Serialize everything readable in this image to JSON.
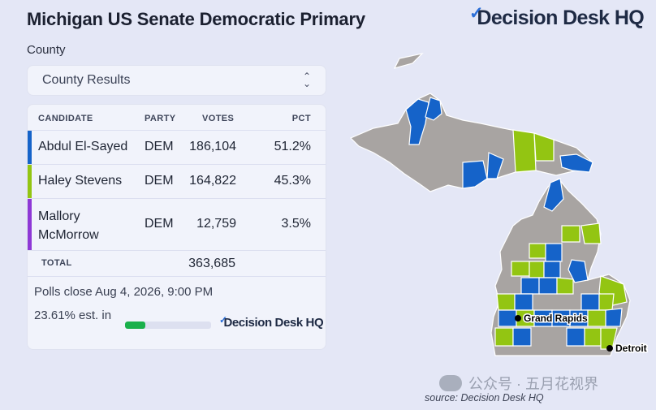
{
  "header": {
    "title": "Michigan US Senate Democratic Primary",
    "brand": "Decision Desk HQ"
  },
  "filter": {
    "label": "County",
    "selected": "County Results"
  },
  "table": {
    "columns": [
      "CANDIDATE",
      "PARTY",
      "VOTES",
      "PCT"
    ],
    "rows": [
      {
        "candidate": "Abdul El-Sayed",
        "party": "DEM",
        "votes": "186,104",
        "pct": "51.2%",
        "color": "#1563c9"
      },
      {
        "candidate": "Haley Stevens",
        "party": "DEM",
        "votes": "164,822",
        "pct": "45.3%",
        "color": "#93c512"
      },
      {
        "candidate": "Mallory McMorrow",
        "party": "DEM",
        "votes": "12,759",
        "pct": "3.5%",
        "color": "#8e38d6"
      }
    ],
    "total_label": "TOTAL",
    "total_votes": "363,685"
  },
  "status": {
    "polls_close": "Polls close Aug 4, 2026, 9:00 PM",
    "reported": "23.61% est. in",
    "reported_fraction": 0.2361,
    "brand": "Decision Desk HQ"
  },
  "map": {
    "cities": [
      "Grand Rapids",
      "Detroit"
    ],
    "colors": {
      "el_sayed": "#1563c9",
      "stevens": "#93c512",
      "no_results": "#a8a4a2"
    }
  },
  "watermark": "公众号 · 五月花视界",
  "source": "source: Decision Desk HQ",
  "icons": [
    "chevron-updown-icon",
    "checkmark-icon"
  ]
}
